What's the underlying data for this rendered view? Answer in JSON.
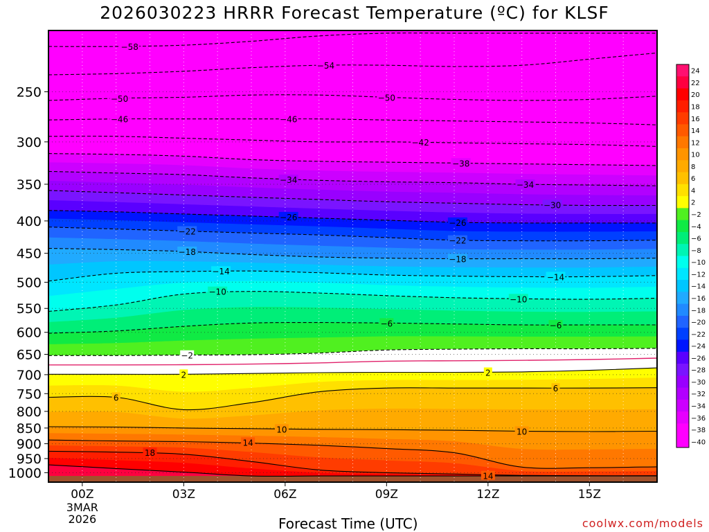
{
  "chart_data": {
    "type": "heatmap",
    "title": "2026030223 HRRR Forecast Temperature (ºC) for KLSF",
    "xlabel": "Forecast Time (UTC)",
    "ylabel": "",
    "source": "coolwx.com/models",
    "x_ticks": [
      {
        "hour": 0,
        "label": "00Z",
        "sub": [
          "3MAR",
          "2026"
        ]
      },
      {
        "hour": 3,
        "label": "03Z"
      },
      {
        "hour": 6,
        "label": "06Z"
      },
      {
        "hour": 9,
        "label": "09Z"
      },
      {
        "hour": 12,
        "label": "12Z"
      },
      {
        "hour": 15,
        "label": "15Z"
      }
    ],
    "xlim": [
      -1,
      17
    ],
    "y_scale": "log",
    "ylim": [
      1035,
      200
    ],
    "y_ticks": [
      250,
      300,
      350,
      400,
      450,
      500,
      550,
      600,
      650,
      700,
      750,
      800,
      850,
      900,
      950,
      1000
    ],
    "grid": true,
    "surface_pressure": 1012,
    "legend": {
      "placement": "right",
      "levels": [
        "24",
        "22",
        "20",
        "18",
        "16",
        "14",
        "12",
        "10",
        "8",
        "6",
        "4",
        "2",
        "−2",
        "−4",
        "−6",
        "−8",
        "−10",
        "−12",
        "−14",
        "−16",
        "−18",
        "−20",
        "−22",
        "−24",
        "−26",
        "−28",
        "−30",
        "−32",
        "−34",
        "−36",
        "−38",
        "−40"
      ]
    },
    "hours": [
      -1,
      1,
      3,
      5,
      7,
      9,
      11,
      13,
      15,
      17
    ],
    "isotherms": [
      {
        "t": -58,
        "p": [
          212,
          212,
          211,
          208,
          204,
          202,
          202,
          202,
          202,
          202
        ]
      },
      {
        "t": -54,
        "p": [
          235,
          234,
          232,
          229,
          227,
          227,
          228,
          227,
          222,
          217
        ]
      },
      {
        "t": -50,
        "p": [
          258,
          256,
          255,
          253,
          253,
          255,
          257,
          258,
          257,
          254
        ]
      },
      {
        "t": -46,
        "p": [
          277,
          276,
          276,
          276,
          276,
          277,
          278,
          279,
          280,
          282
        ]
      },
      {
        "t": -42,
        "p": [
          294,
          294,
          296,
          298,
          300,
          300,
          301,
          302,
          303,
          305
        ]
      },
      {
        "t": -38,
        "p": [
          313,
          314,
          316,
          320,
          322,
          323,
          324,
          325,
          326,
          327
        ]
      },
      {
        "t": -34,
        "p": [
          334,
          336,
          338,
          342,
          345,
          347,
          348,
          350,
          351,
          352
        ]
      },
      {
        "t": -30,
        "p": [
          358,
          361,
          364,
          367,
          370,
          373,
          375,
          377,
          378,
          378
        ]
      },
      {
        "t": -26,
        "p": [
          385,
          387,
          390,
          393,
          396,
          399,
          402,
          403,
          403,
          403
        ]
      },
      {
        "t": -22,
        "p": [
          409,
          412,
          415,
          418,
          421,
          425,
          429,
          430,
          430,
          429
        ]
      },
      {
        "t": -18,
        "p": [
          442,
          444,
          447,
          452,
          456,
          458,
          459,
          459,
          459,
          458
        ]
      },
      {
        "t": -14,
        "p": [
          498,
          484,
          481,
          480,
          483,
          487,
          489,
          490,
          490,
          488
        ]
      },
      {
        "t": -10,
        "p": [
          556,
          543,
          522,
          517,
          520,
          525,
          529,
          531,
          532,
          530
        ]
      },
      {
        "t": -6,
        "p": [
          602,
          597,
          587,
          580,
          579,
          580,
          582,
          584,
          584,
          584
        ]
      },
      {
        "t": -2,
        "p": [
          653,
          653,
          652,
          651,
          647,
          640,
          638,
          637,
          637,
          636
        ]
      },
      {
        "t": 2,
        "p": [
          699,
          699,
          699,
          697,
          695,
          694,
          694,
          693,
          689,
          683
        ]
      },
      {
        "t": 6,
        "p": [
          760,
          760,
          795,
          775,
          745,
          735,
          735,
          735,
          735,
          734
        ]
      },
      {
        "t": 10,
        "p": [
          846,
          847,
          850,
          852,
          854,
          855,
          857,
          860,
          861,
          860
        ]
      },
      {
        "t": 14,
        "p": [
          888,
          891,
          893,
          898,
          905,
          916,
          930,
          980,
          982,
          979
        ]
      },
      {
        "t": 18,
        "p": [
          925,
          928,
          935,
          960,
          990,
          1000,
          1005,
          1010,
          1011,
          1011
        ]
      },
      {
        "t": 22,
        "p": [
          972,
          985,
          998,
          1012,
          1012,
          1012,
          1012,
          1012,
          1012,
          1012
        ]
      }
    ],
    "labels": [
      {
        "text": "−58",
        "hour": 1.4,
        "p": 212
      },
      {
        "text": "−54",
        "hour": 7.2,
        "p": 227
      },
      {
        "text": "−50",
        "hour": 1.1,
        "p": 256
      },
      {
        "text": "−50",
        "hour": 9.0,
        "p": 255
      },
      {
        "text": "−46",
        "hour": 1.1,
        "p": 276
      },
      {
        "text": "−46",
        "hour": 6.1,
        "p": 276
      },
      {
        "text": "−42",
        "hour": 10.0,
        "p": 300
      },
      {
        "text": "−38",
        "hour": 11.2,
        "p": 324
      },
      {
        "text": "−34",
        "hour": 6.1,
        "p": 344
      },
      {
        "text": "−34",
        "hour": 13.1,
        "p": 350
      },
      {
        "text": "−30",
        "hour": 13.9,
        "p": 377
      },
      {
        "text": "−26",
        "hour": 6.1,
        "p": 394
      },
      {
        "text": "−26",
        "hour": 11.1,
        "p": 402
      },
      {
        "text": "−22",
        "hour": 3.1,
        "p": 415
      },
      {
        "text": "−22",
        "hour": 11.1,
        "p": 429
      },
      {
        "text": "−18",
        "hour": 3.1,
        "p": 447
      },
      {
        "text": "−18",
        "hour": 11.1,
        "p": 459
      },
      {
        "text": "−14",
        "hour": 4.1,
        "p": 480
      },
      {
        "text": "−14",
        "hour": 14.0,
        "p": 490
      },
      {
        "text": "−10",
        "hour": 4.0,
        "p": 517
      },
      {
        "text": "−10",
        "hour": 12.9,
        "p": 531
      },
      {
        "text": "−6",
        "hour": 9.0,
        "p": 580
      },
      {
        "text": "−6",
        "hour": 14.0,
        "p": 584
      },
      {
        "text": "−2",
        "hour": 3.1,
        "p": 652
      },
      {
        "text": "2",
        "hour": 3.0,
        "p": 699
      },
      {
        "text": "2",
        "hour": 12.0,
        "p": 694
      },
      {
        "text": "6",
        "hour": 1.0,
        "p": 760
      },
      {
        "text": "6",
        "hour": 14.0,
        "p": 735
      },
      {
        "text": "10",
        "hour": 5.9,
        "p": 853
      },
      {
        "text": "10",
        "hour": 13.0,
        "p": 860
      },
      {
        "text": "14",
        "hour": 4.9,
        "p": 895
      },
      {
        "text": "14",
        "hour": 12.0,
        "p": 1011
      },
      {
        "text": "18",
        "hour": 2.0,
        "p": 929
      }
    ]
  }
}
